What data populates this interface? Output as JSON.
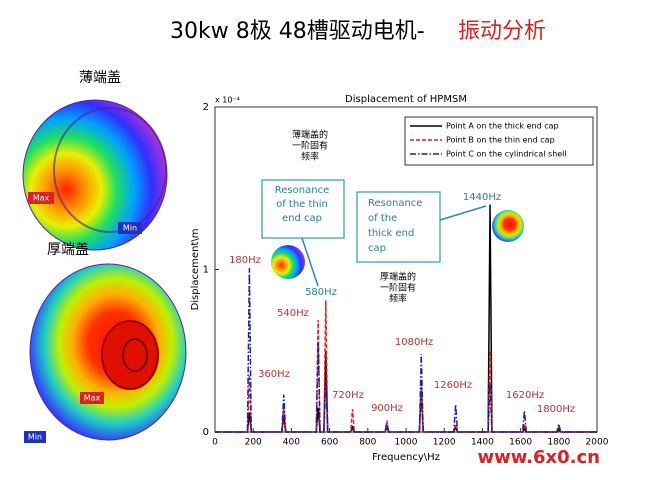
{
  "header": {
    "title_main": "30kw 8极 48槽驱动电机-",
    "title_highlight": "振动分析"
  },
  "left_panel": {
    "thin_cap": {
      "label": "薄端盖",
      "max": "Max",
      "min": "Min"
    },
    "thick_cap": {
      "label": "厚端盖",
      "max": "Max",
      "min": "Min"
    }
  },
  "chart_data": {
    "type": "line",
    "title": "Displacement of HPMSM",
    "x_label": "Frequency\\Hz",
    "y_label": "Displacement\\m",
    "y_scale_note": "x 10⁻⁴",
    "x": [
      0,
      170,
      180,
      190,
      350,
      360,
      370,
      530,
      540,
      550,
      570,
      580,
      590,
      710,
      720,
      730,
      890,
      900,
      910,
      1070,
      1080,
      1090,
      1250,
      1260,
      1270,
      1430,
      1440,
      1450,
      1610,
      1620,
      1630,
      1790,
      1800,
      1810,
      2000
    ],
    "series": [
      {
        "name": "Point A on the thick end cap",
        "color": "#000000",
        "dash": "solid",
        "values": [
          0,
          0,
          0.12,
          0,
          0,
          0.1,
          0,
          0,
          0.15,
          0,
          0,
          0.5,
          0,
          0,
          0.03,
          0,
          0,
          0.03,
          0,
          0,
          0.25,
          0,
          0,
          0.03,
          0,
          0,
          1.4,
          0,
          0,
          0.02,
          0,
          0,
          0.02,
          0,
          0
        ]
      },
      {
        "name": "Point B on the thin end cap",
        "color": "#e02020",
        "dash": "dashed",
        "values": [
          0,
          0,
          0.35,
          0,
          0,
          0.15,
          0,
          0,
          0.69,
          0,
          0,
          0.81,
          0,
          0,
          0.14,
          0,
          0,
          0.07,
          0,
          0,
          0.3,
          0,
          0,
          0.05,
          0,
          0,
          0.5,
          0,
          0,
          0.05,
          0,
          0,
          0.03,
          0,
          0
        ]
      },
      {
        "name": "Point C on the cylindrical shell",
        "color": "#2020a0",
        "dash": "dashdot",
        "values": [
          0,
          0,
          1.01,
          0,
          0,
          0.23,
          0,
          0,
          0.55,
          0,
          0,
          0.3,
          0,
          0,
          0.02,
          0,
          0,
          0.05,
          0,
          0,
          0.48,
          0,
          0,
          0.17,
          0,
          0,
          0.3,
          0,
          0,
          0.13,
          0,
          0,
          0.05,
          0,
          0
        ]
      }
    ],
    "xlim": [
      0,
      2000
    ],
    "ylim": [
      0,
      2
    ],
    "xticks": [
      0,
      200,
      400,
      600,
      800,
      1000,
      1200,
      1400,
      1600,
      1800,
      2000
    ],
    "yticks": [
      0,
      1,
      2
    ],
    "legend": "top-right",
    "annotations": [
      {
        "text": "180Hz",
        "color": "#c03030"
      },
      {
        "text": "580Hz",
        "color": "#2a7f9f"
      },
      {
        "text": "540Hz",
        "color": "#c03030"
      },
      {
        "text": "1440Hz",
        "color": "#2a7f9f"
      },
      {
        "text": "360Hz",
        "color": "#c03030"
      },
      {
        "text": "1080Hz",
        "color": "#c03030"
      },
      {
        "text": "720Hz",
        "color": "#c03030"
      },
      {
        "text": "900Hz",
        "color": "#c03030"
      },
      {
        "text": "1260Hz",
        "color": "#c03030"
      },
      {
        "text": "1620Hz",
        "color": "#c03030"
      },
      {
        "text": "1800Hz",
        "color": "#c03030"
      }
    ],
    "notes": [
      {
        "lines": [
          "薄端盖的",
          "一阶固有",
          "频率"
        ]
      },
      {
        "lines": [
          "Resonance",
          "of the thin",
          "end cap"
        ]
      },
      {
        "lines": [
          "Resonance",
          "of the",
          "thick end",
          "cap"
        ]
      },
      {
        "lines": [
          "厚端盖的",
          "一阶固有",
          "频率"
        ]
      }
    ]
  },
  "watermark": "www.6x0.cn"
}
